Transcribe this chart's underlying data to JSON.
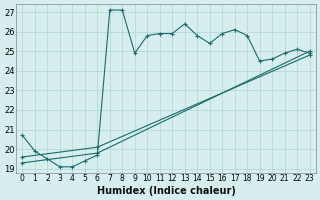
{
  "title": "",
  "xlabel": "Humidex (Indice chaleur)",
  "bg_color": "#d6eeee",
  "grid_color": "#b8d8d8",
  "line_color": "#1a6b6b",
  "xlim": [
    -0.5,
    23.5
  ],
  "ylim": [
    18.8,
    27.4
  ],
  "yticks": [
    19,
    20,
    21,
    22,
    23,
    24,
    25,
    26,
    27
  ],
  "xticks": [
    0,
    1,
    2,
    3,
    4,
    5,
    6,
    7,
    8,
    9,
    10,
    11,
    12,
    13,
    14,
    15,
    16,
    17,
    18,
    19,
    20,
    21,
    22,
    23
  ],
  "series": [
    {
      "x": [
        0,
        1,
        2,
        3,
        4,
        5,
        6,
        7,
        8,
        9,
        10,
        11,
        12,
        13,
        14,
        15,
        16,
        17,
        18,
        19,
        20,
        21,
        22,
        23
      ],
      "y": [
        20.7,
        19.9,
        19.5,
        19.1,
        19.1,
        19.4,
        19.7,
        27.1,
        27.1,
        24.9,
        25.8,
        25.9,
        25.9,
        26.4,
        25.8,
        25.4,
        25.9,
        26.1,
        25.8,
        24.5,
        24.6,
        24.9,
        25.1,
        24.9
      ]
    },
    {
      "x": [
        0,
        6,
        23
      ],
      "y": [
        19.3,
        19.8,
        25.0
      ]
    },
    {
      "x": [
        0,
        6,
        23
      ],
      "y": [
        19.6,
        20.1,
        24.8
      ]
    }
  ]
}
